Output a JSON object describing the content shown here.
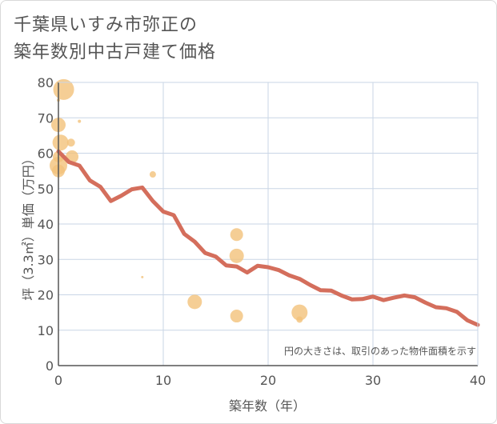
{
  "title_line1": "千葉県いすみ市弥正の",
  "title_line2": "築年数別中古戸建て価格",
  "chart_data": {
    "type": "scatter+line",
    "xlabel": "築年数（年）",
    "ylabel": "坪（3.3㎡）単価（万円）",
    "xlim": [
      0,
      40
    ],
    "ylim": [
      0,
      80
    ],
    "xticks": [
      0,
      10,
      20,
      30,
      40
    ],
    "yticks": [
      0,
      10,
      20,
      30,
      40,
      50,
      60,
      70,
      80
    ],
    "grid": true,
    "note": "円の大きさは、取引のあった物件面積を示す",
    "colors": {
      "line": "#d46e5c",
      "bubble": "#f2c27a",
      "grid": "#c9d6e6",
      "axis": "#555555"
    },
    "trend_line": {
      "x": [
        0,
        1,
        2,
        3,
        4,
        5,
        6,
        7,
        8,
        9,
        10,
        11,
        12,
        13,
        14,
        15,
        16,
        17,
        18,
        19,
        20,
        21,
        22,
        23,
        24,
        25,
        26,
        27,
        28,
        29,
        30,
        31,
        32,
        33,
        34,
        35,
        36,
        37,
        38,
        39,
        40
      ],
      "y": [
        60.5,
        57.5,
        56.5,
        52.3,
        50.5,
        46.5,
        48,
        49.8,
        50.3,
        46.5,
        43.5,
        42.5,
        37.2,
        35,
        31.8,
        30.8,
        28.3,
        28,
        26.3,
        28.2,
        27.8,
        27,
        25.5,
        24.5,
        22.8,
        21.3,
        21.2,
        19.8,
        18.7,
        18.8,
        19.5,
        18.5,
        19.2,
        19.8,
        19.3,
        17.8,
        16.5,
        16.2,
        15.2,
        12.8,
        11.5
      ]
    },
    "bubbles": [
      {
        "x": 0.5,
        "y": 78,
        "size": 13
      },
      {
        "x": 0,
        "y": 75,
        "size": 2
      },
      {
        "x": 0,
        "y": 68,
        "size": 9
      },
      {
        "x": 2,
        "y": 69,
        "size": 2
      },
      {
        "x": 0.2,
        "y": 63,
        "size": 10
      },
      {
        "x": 1.2,
        "y": 63,
        "size": 5
      },
      {
        "x": 1.3,
        "y": 59,
        "size": 8
      },
      {
        "x": 0,
        "y": 59,
        "size": 7
      },
      {
        "x": 0,
        "y": 56.5,
        "size": 11
      },
      {
        "x": 0,
        "y": 55,
        "size": 8
      },
      {
        "x": 9,
        "y": 54,
        "size": 4
      },
      {
        "x": 8,
        "y": 25,
        "size": 1.5
      },
      {
        "x": 13,
        "y": 18,
        "size": 9
      },
      {
        "x": 17,
        "y": 37,
        "size": 8
      },
      {
        "x": 17,
        "y": 31,
        "size": 9
      },
      {
        "x": 17,
        "y": 14,
        "size": 8
      },
      {
        "x": 23,
        "y": 15,
        "size": 10
      },
      {
        "x": 23,
        "y": 13,
        "size": 4
      }
    ]
  }
}
